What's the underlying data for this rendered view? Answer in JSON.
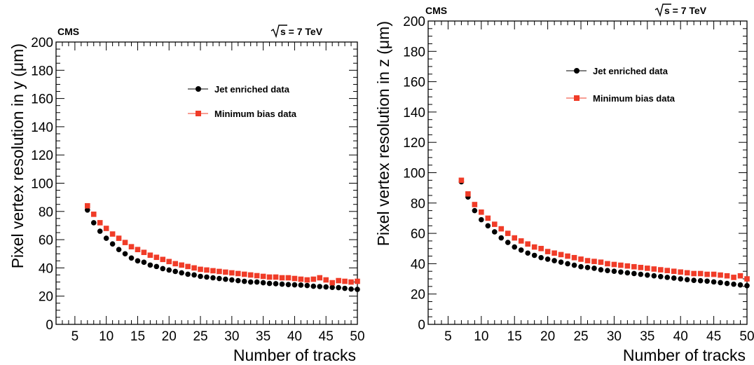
{
  "chart_data": [
    {
      "type": "scatter",
      "experiment_label": "CMS",
      "energy_label": "√s = 7 TeV",
      "energy_prefix": "s = 7 TeV",
      "xlabel": "Number of tracks",
      "ylabel": "Pixel vertex resolution in y (μm)",
      "xlim": [
        2,
        50
      ],
      "ylim": [
        0,
        200
      ],
      "xticks": [
        5,
        10,
        15,
        20,
        25,
        30,
        35,
        40,
        45,
        50
      ],
      "yticks": [
        0,
        20,
        40,
        60,
        80,
        100,
        120,
        140,
        160,
        180,
        200
      ],
      "legend_position": "upper-right",
      "series": [
        {
          "name": "Jet enriched data",
          "marker": "circle",
          "color": "#000000",
          "x": [
            7,
            8,
            9,
            10,
            11,
            12,
            13,
            14,
            15,
            16,
            17,
            18,
            19,
            20,
            21,
            22,
            23,
            24,
            25,
            26,
            27,
            28,
            29,
            30,
            31,
            32,
            33,
            34,
            35,
            36,
            37,
            38,
            39,
            40,
            41,
            42,
            43,
            44,
            45,
            46,
            47,
            48,
            49,
            50
          ],
          "y": [
            81,
            72,
            66,
            61,
            57,
            53,
            50,
            47,
            45,
            44,
            42,
            41,
            39.5,
            38.5,
            37.5,
            36.5,
            35.5,
            35,
            34,
            33.5,
            33,
            32.5,
            32,
            31.5,
            31,
            30.5,
            30,
            30,
            29.5,
            29,
            28.8,
            28.5,
            28.2,
            28,
            27.8,
            27.5,
            27,
            26.8,
            26.5,
            26.2,
            26,
            25.5,
            25,
            24.8
          ]
        },
        {
          "name": "Minimum bias data",
          "marker": "square",
          "color": "#f03c28",
          "x": [
            7,
            8,
            9,
            10,
            11,
            12,
            13,
            14,
            15,
            16,
            17,
            18,
            19,
            20,
            21,
            22,
            23,
            24,
            25,
            26,
            27,
            28,
            29,
            30,
            31,
            32,
            33,
            34,
            35,
            36,
            37,
            38,
            39,
            40,
            41,
            42,
            43,
            44,
            45,
            46,
            47,
            48,
            49,
            50
          ],
          "y": [
            84,
            78,
            72,
            68,
            64,
            61,
            58,
            55,
            53,
            51,
            49,
            47.5,
            46,
            44.5,
            43,
            42,
            41,
            40,
            39,
            38.5,
            38,
            37.5,
            37,
            36.5,
            36,
            35.5,
            35,
            34.5,
            34,
            33.5,
            33.5,
            33,
            33,
            32.5,
            32,
            31.5,
            32,
            33,
            31.5,
            29.5,
            31,
            30.5,
            30,
            30.5
          ]
        }
      ]
    },
    {
      "type": "scatter",
      "experiment_label": "CMS",
      "energy_label": "√s = 7 TeV",
      "energy_prefix": "s = 7 TeV",
      "xlabel": "Number of tracks",
      "ylabel": "Pixel vertex resolution in z (μm)",
      "xlim": [
        2,
        50
      ],
      "ylim": [
        0,
        200
      ],
      "xticks": [
        5,
        10,
        15,
        20,
        25,
        30,
        35,
        40,
        45,
        50
      ],
      "yticks": [
        0,
        20,
        40,
        60,
        80,
        100,
        120,
        140,
        160,
        180,
        200
      ],
      "legend_position": "upper-right",
      "series": [
        {
          "name": "Jet enriched data",
          "marker": "circle",
          "color": "#000000",
          "x": [
            7,
            8,
            9,
            10,
            11,
            12,
            13,
            14,
            15,
            16,
            17,
            18,
            19,
            20,
            21,
            22,
            23,
            24,
            25,
            26,
            27,
            28,
            29,
            30,
            31,
            32,
            33,
            34,
            35,
            36,
            37,
            38,
            39,
            40,
            41,
            42,
            43,
            44,
            45,
            46,
            47,
            48,
            49,
            50
          ],
          "y": [
            94,
            84,
            75,
            69,
            65,
            61,
            57,
            54,
            51,
            49,
            47,
            45.5,
            44,
            43,
            42,
            41,
            40,
            39,
            38,
            37.5,
            37,
            36,
            35.5,
            35,
            34.5,
            34,
            33.5,
            33,
            32.5,
            32,
            31.5,
            31,
            30.5,
            30,
            29.5,
            29,
            28.8,
            28.5,
            28,
            27.5,
            27,
            26.5,
            26,
            25.5
          ]
        },
        {
          "name": "Minimum bias data",
          "marker": "square",
          "color": "#f03c28",
          "x": [
            7,
            8,
            9,
            10,
            11,
            12,
            13,
            14,
            15,
            16,
            17,
            18,
            19,
            20,
            21,
            22,
            23,
            24,
            25,
            26,
            27,
            28,
            29,
            30,
            31,
            32,
            33,
            34,
            35,
            36,
            37,
            38,
            39,
            40,
            41,
            42,
            43,
            44,
            45,
            46,
            47,
            48,
            49,
            50
          ],
          "y": [
            95,
            86,
            79,
            74,
            70,
            66,
            63,
            60,
            57,
            55,
            53,
            51,
            50,
            48,
            47,
            46,
            45,
            44,
            43,
            42,
            41.5,
            41,
            40,
            39.5,
            39,
            38.5,
            38,
            37.5,
            37,
            36.5,
            36,
            35.5,
            35,
            34.5,
            34,
            33.5,
            33.5,
            33,
            33,
            32.5,
            32,
            31,
            32,
            30
          ]
        }
      ]
    }
  ]
}
